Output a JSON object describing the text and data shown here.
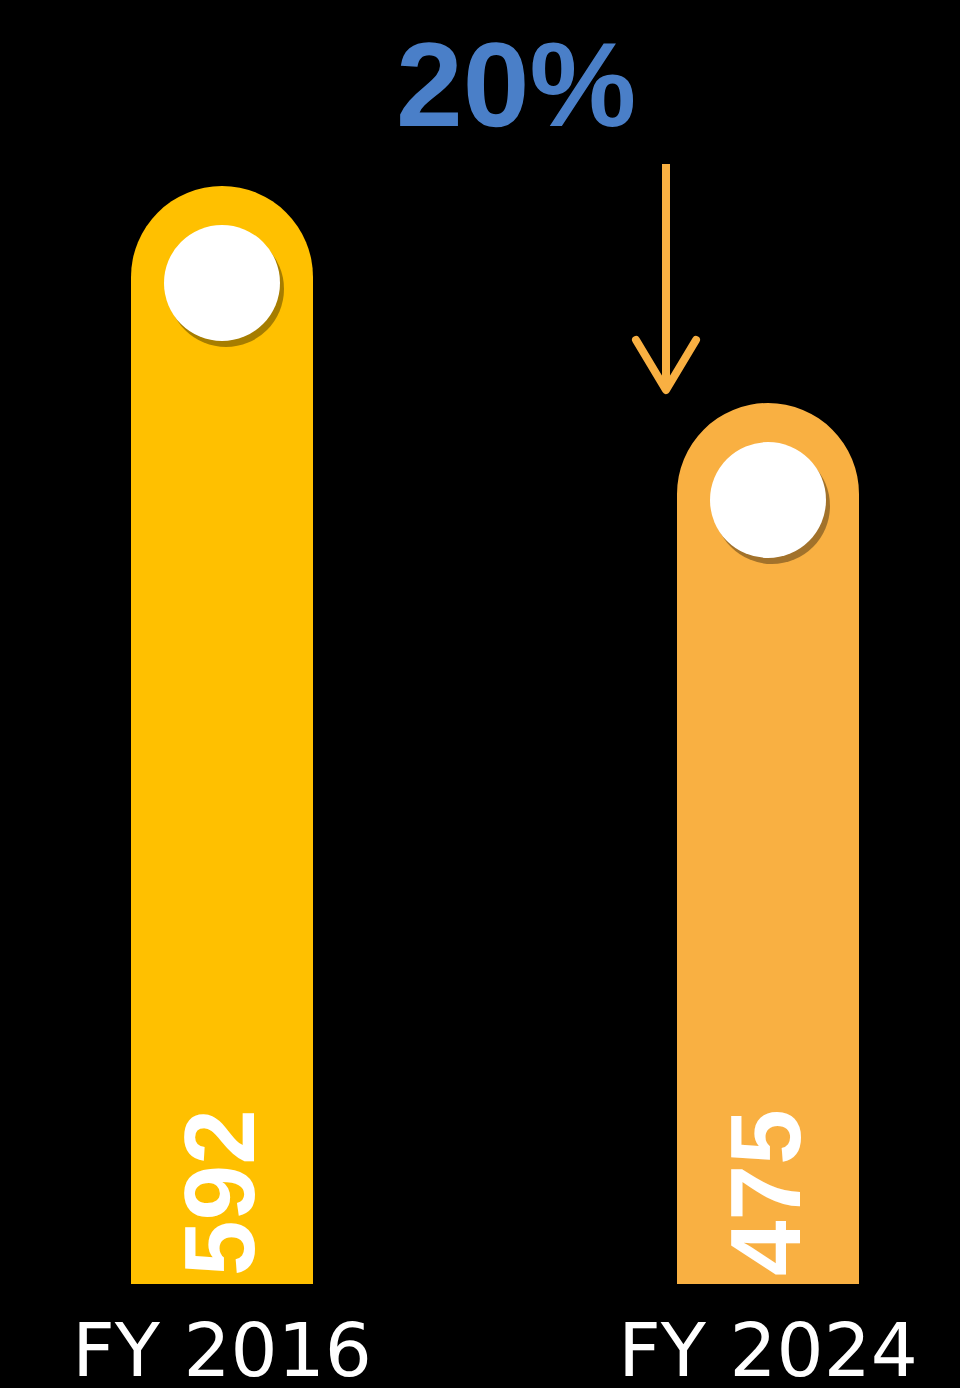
{
  "chart_data": {
    "type": "bar",
    "categories": [
      "FY 2016",
      "FY 2024"
    ],
    "values": [
      592,
      475
    ],
    "colors": [
      "#ffc000",
      "#f9b042"
    ],
    "data_labels": true,
    "annotations": [
      "20%"
    ]
  }
}
